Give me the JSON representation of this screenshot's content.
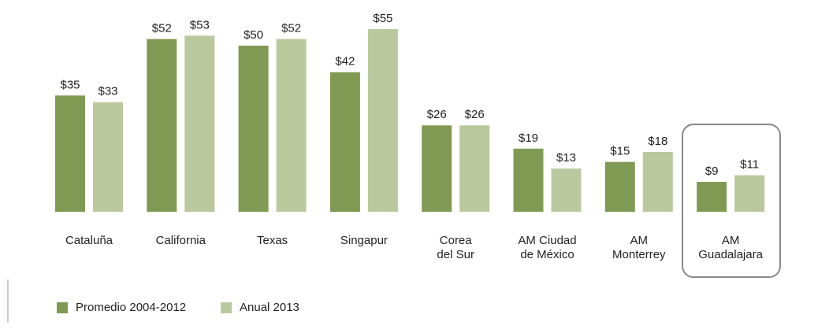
{
  "chart_data": {
    "type": "bar",
    "categories": [
      "Cataluña",
      "California",
      "Texas",
      "Singapur",
      "Corea\ndel Sur",
      "AM Ciudad\nde México",
      "AM\nMonterrey",
      "AM\nGuadalajara"
    ],
    "series": [
      {
        "name": "Promedio 2004-2012",
        "color": "#7f9a52",
        "values": [
          35,
          52,
          50,
          42,
          26,
          19,
          15,
          9
        ],
        "value_labels": [
          "$35",
          "$52",
          "$50",
          "$42",
          "$26",
          "$19",
          "$15",
          "$9"
        ]
      },
      {
        "name": "Anual 2013",
        "color": "#b9c99d",
        "values": [
          33,
          53,
          52,
          55,
          26,
          13,
          18,
          11
        ],
        "value_labels": [
          "$33",
          "$53",
          "$52",
          "$55",
          "$26",
          "$13",
          "$18",
          "$11"
        ]
      }
    ]
  }
}
